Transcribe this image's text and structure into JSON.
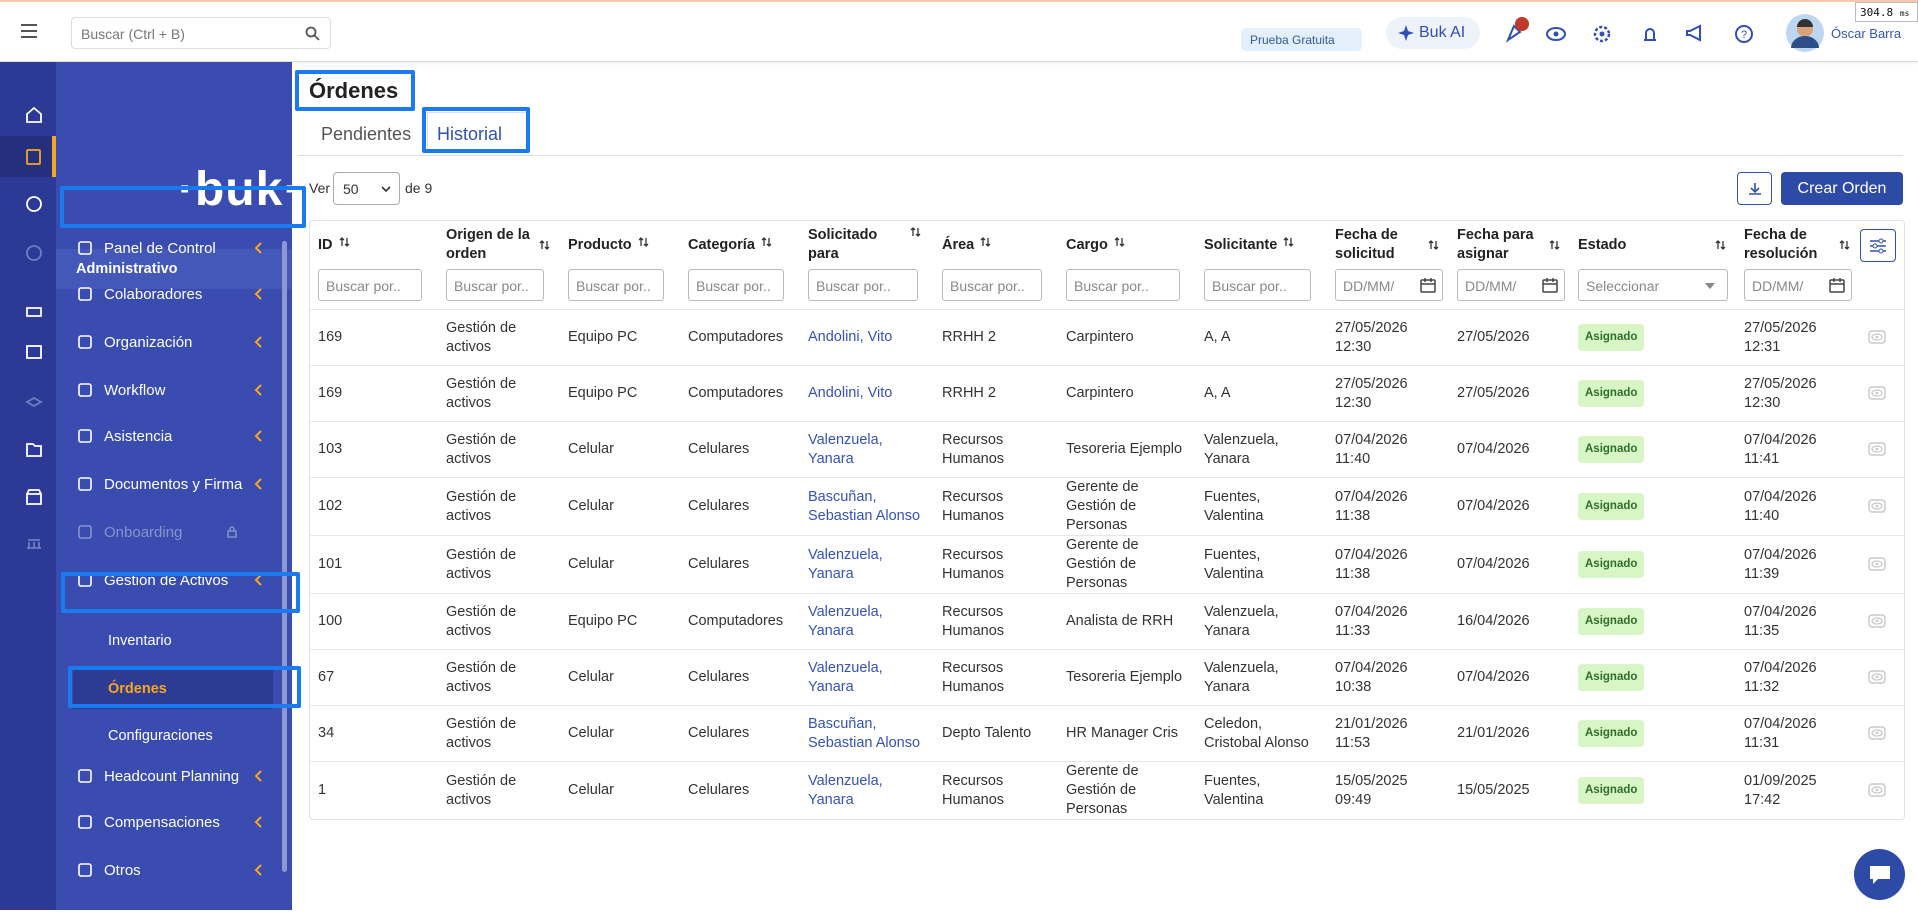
{
  "header": {
    "search_placeholder": "Buscar (Ctrl + B)",
    "trial": "Prueba Gratuita",
    "ai": "Buk AI",
    "user": "Óscar Barra",
    "perf_value": "304.8",
    "perf_unit": "ms"
  },
  "sidebar": {
    "logo": "buk",
    "section": "Administrativo",
    "items": [
      "Panel de Control",
      "Colaboradores",
      "Organización",
      "Workflow",
      "Asistencia",
      "Documentos y Firma",
      "Onboarding",
      "Gestión de Activos",
      "Headcount Planning",
      "Compensaciones",
      "Otros"
    ],
    "subitems": [
      "Inventario",
      "Órdenes",
      "Configuraciones"
    ]
  },
  "page": {
    "title": "Órdenes",
    "tabs": [
      "Pendientes",
      "Historial"
    ],
    "ver": "Ver",
    "page_size": "50",
    "of_pages": "de 9",
    "create": "Crear Orden"
  },
  "table": {
    "columns": [
      "ID",
      "Origen de la orden",
      "Producto",
      "Categoría",
      "Solicitado para",
      "Área",
      "Cargo",
      "Solicitante",
      "Fecha de solicitud",
      "Fecha para asignar",
      "Estado",
      "Fecha de resolución"
    ],
    "filters": [
      "Buscar por..",
      "Buscar por..",
      "Buscar por..",
      "Buscar por..",
      "Buscar por..",
      "Buscar por..",
      "Buscar por..",
      "Buscar por..",
      "DD/MM/",
      "DD/MM/",
      "Seleccionar",
      "DD/MM/"
    ],
    "rows": [
      [
        "169",
        "Gestión de activos",
        "Equipo PC",
        "Computadores",
        "Andolini, Vito",
        "RRHH 2",
        "Carpintero",
        "A, A",
        "27/05/2026 12:30",
        "27/05/2026",
        "Asignado",
        "27/05/2026 12:31"
      ],
      [
        "169",
        "Gestión de activos",
        "Equipo PC",
        "Computadores",
        "Andolini, Vito",
        "RRHH 2",
        "Carpintero",
        "A, A",
        "27/05/2026 12:30",
        "27/05/2026",
        "Asignado",
        "27/05/2026 12:30"
      ],
      [
        "103",
        "Gestión de activos",
        "Celular",
        "Celulares",
        "Valenzuela, Yanara",
        "Recursos Humanos",
        "Tesoreria Ejemplo",
        "Valenzuela, Yanara",
        "07/04/2026 11:40",
        "07/04/2026",
        "Asignado",
        "07/04/2026 11:41"
      ],
      [
        "102",
        "Gestión de activos",
        "Celular",
        "Celulares",
        "Bascuñan, Sebastian Alonso",
        "Recursos Humanos",
        "Gerente de Gestión de Personas",
        "Fuentes, Valentina",
        "07/04/2026 11:38",
        "07/04/2026",
        "Asignado",
        "07/04/2026 11:40"
      ],
      [
        "101",
        "Gestión de activos",
        "Celular",
        "Celulares",
        "Valenzuela, Yanara",
        "Recursos Humanos",
        "Gerente de Gestión de Personas",
        "Fuentes, Valentina",
        "07/04/2026 11:38",
        "07/04/2026",
        "Asignado",
        "07/04/2026 11:39"
      ],
      [
        "100",
        "Gestión de activos",
        "Equipo PC",
        "Computadores",
        "Valenzuela, Yanara",
        "Recursos Humanos",
        "Analista de RRH",
        "Valenzuela, Yanara",
        "07/04/2026 11:33",
        "16/04/2026",
        "Asignado",
        "07/04/2026 11:35"
      ],
      [
        "67",
        "Gestión de activos",
        "Celular",
        "Celulares",
        "Valenzuela, Yanara",
        "Recursos Humanos",
        "Tesoreria Ejemplo",
        "Valenzuela, Yanara",
        "07/04/2026 10:38",
        "07/04/2026",
        "Asignado",
        "07/04/2026 11:32"
      ],
      [
        "34",
        "Gestión de activos",
        "Celular",
        "Celulares",
        "Bascuñan, Sebastian Alonso",
        "Depto Talento",
        "HR Manager Cris",
        "Celedon, Cristobal Alonso",
        "21/01/2026 11:53",
        "21/01/2026",
        "Asignado",
        "07/04/2026 11:31"
      ],
      [
        "1",
        "Gestión de activos",
        "Celular",
        "Celulares",
        "Valenzuela, Yanara",
        "Recursos Humanos",
        "Gerente de Gestión de Personas",
        "Fuentes, Valentina",
        "15/05/2025 09:49",
        "15/05/2025",
        "Asignado",
        "01/09/2025 17:42"
      ]
    ]
  }
}
